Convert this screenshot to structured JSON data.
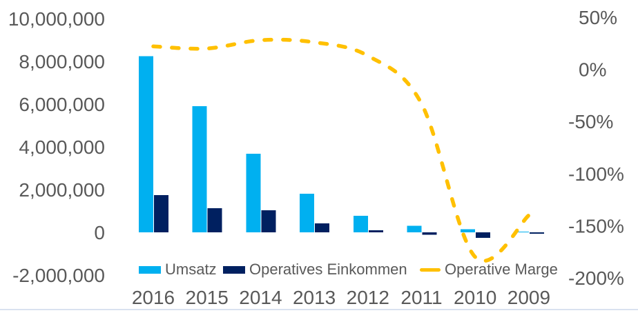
{
  "chart_data": {
    "type": "combo-bar-line",
    "title": "",
    "categories": [
      "2016",
      "2015",
      "2014",
      "2013",
      "2012",
      "2011",
      "2010",
      "2009"
    ],
    "bar_series": [
      {
        "name": "Umsatz",
        "color": "#00B0F0",
        "values": [
          8250000,
          5900000,
          3680000,
          1810000,
          780000,
          300000,
          140000,
          40000
        ]
      },
      {
        "name": "Operatives Einkommen",
        "color": "#002060",
        "values": [
          1750000,
          1130000,
          1030000,
          420000,
          100000,
          -120000,
          -250000,
          -60000
        ]
      }
    ],
    "line_series": {
      "name": "Operative Marge",
      "color": "#FFC000",
      "style": "dashed",
      "smooth": true,
      "axis": "right",
      "values_pct": [
        22,
        20,
        28,
        26,
        13,
        -33,
        -180,
        -140
      ]
    },
    "left_axis": {
      "range": [
        -2000000,
        10000000
      ],
      "ticks": [
        {
          "label": "10,000,000",
          "value": 10000000
        },
        {
          "label": "8,000,000",
          "value": 8000000
        },
        {
          "label": "6,000,000",
          "value": 6000000
        },
        {
          "label": "4,000,000",
          "value": 4000000
        },
        {
          "label": "2,000,000",
          "value": 2000000
        },
        {
          "label": "0",
          "value": 0
        },
        {
          "label": "-2,000,000",
          "value": -2000000
        }
      ]
    },
    "right_axis": {
      "range": [
        -200,
        50
      ],
      "ticks": [
        {
          "label": "50%",
          "value": 50
        },
        {
          "label": "0%",
          "value": 0
        },
        {
          "label": "-50%",
          "value": -50
        },
        {
          "label": "-100%",
          "value": -100
        },
        {
          "label": "-150%",
          "value": -150
        },
        {
          "label": "-200%",
          "value": -200
        }
      ]
    },
    "legend": {
      "position": "bottom",
      "items": [
        "Umsatz",
        "Operatives Einkommen",
        "Operative Marge"
      ]
    },
    "grid": false,
    "background": "#FFFFFF"
  },
  "colors": {
    "umsatz_bar": "#00B0F0",
    "einkommen_bar": "#002060",
    "marge_line": "#FFC000",
    "axis_text": "#595959",
    "bottom_divider": "#d9e2f0"
  }
}
